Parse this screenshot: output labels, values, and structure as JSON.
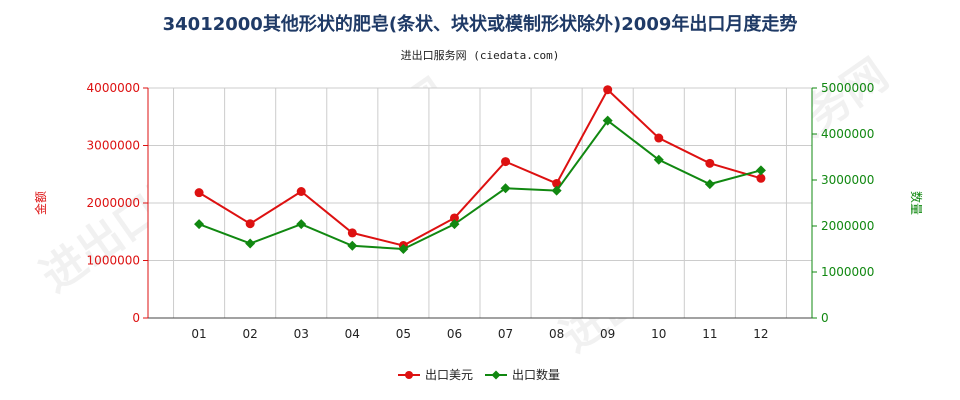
{
  "title": "34012000其他形状的肥皂(条状、块状或模制形状除外)2009年出口月度走势",
  "subtitle": "进出口服务网 (ciedata.com)",
  "watermark": "进出口服务网",
  "colors": {
    "usd": "#dd1111",
    "qty": "#118811",
    "grid": "#cccccc",
    "axis": "#444444"
  },
  "chart_data": {
    "type": "line",
    "categories": [
      "01",
      "02",
      "03",
      "04",
      "05",
      "06",
      "07",
      "08",
      "09",
      "10",
      "11",
      "12"
    ],
    "ylabel_left": "金额",
    "ylabel_right": "数量",
    "ylim_left": [
      0,
      4000000
    ],
    "ylim_right": [
      0,
      5000000
    ],
    "yticks_left": [
      "0",
      "1000000",
      "2000000",
      "3000000",
      "4000000"
    ],
    "yticks_right": [
      "0",
      "1000000",
      "2000000",
      "3000000",
      "4000000",
      "5000000"
    ],
    "grid": true,
    "legend": "bottom-center",
    "series": [
      {
        "name": "出口美元",
        "axis": "left",
        "color": "#dd1111",
        "values": [
          2180000,
          1640000,
          2200000,
          1480000,
          1260000,
          1740000,
          2720000,
          2340000,
          3970000,
          3130000,
          2690000,
          2430000
        ]
      },
      {
        "name": "出口数量",
        "axis": "right",
        "color": "#118811",
        "values": [
          2040000,
          1620000,
          2040000,
          1570000,
          1500000,
          2040000,
          2820000,
          2770000,
          4290000,
          3440000,
          2910000,
          3210000
        ]
      }
    ]
  }
}
